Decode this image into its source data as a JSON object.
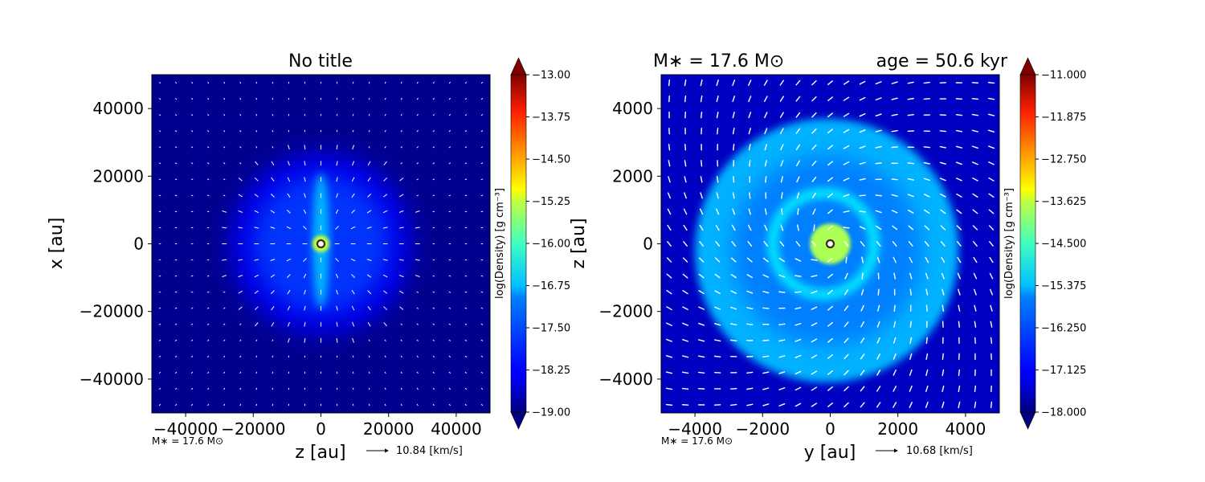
{
  "chart_data": [
    {
      "type": "heatmap",
      "title": "No title",
      "title_right": "",
      "xlabel": "z [au]",
      "ylabel": "x [au]",
      "xlim": [
        -50000,
        50000
      ],
      "ylim": [
        -50000,
        50000
      ],
      "xticks": [
        -40000,
        -20000,
        0,
        20000,
        40000
      ],
      "yticks": [
        -40000,
        -20000,
        0,
        20000,
        40000
      ],
      "xtick_labels": [
        "−40000",
        "−20000",
        "0",
        "20000",
        "40000"
      ],
      "ytick_labels": [
        "−40000",
        "−20000",
        "0",
        "20000",
        "40000"
      ],
      "colorbar": {
        "label": "log(Density) [g cm⁻³]",
        "min": -19.0,
        "max": -13.0,
        "ticks": [
          -13.0,
          -13.75,
          -14.5,
          -15.25,
          -16.0,
          -16.75,
          -17.5,
          -18.25,
          -19.0
        ],
        "tick_labels": [
          "−13.00",
          "−13.75",
          "−14.50",
          "−15.25",
          "−16.00",
          "−16.75",
          "−17.50",
          "−18.25",
          "−19.00"
        ],
        "extend": "both"
      },
      "annotation": "M∗ = 17.6 M⊙",
      "velocity_key": "10.84 [km/s]",
      "sink_position": [
        0,
        0
      ],
      "structures": [
        {
          "kind": "envelope",
          "center": [
            0,
            0
          ],
          "radius": 27000,
          "log_density": -18.3
        },
        {
          "kind": "envelope",
          "center": [
            0,
            0
          ],
          "radius": 20000,
          "log_density": -17.9
        },
        {
          "kind": "filament",
          "center": [
            0,
            1000
          ],
          "width": 5000,
          "height": 40000,
          "log_density": -17.2
        },
        {
          "kind": "core",
          "center": [
            0,
            0
          ],
          "radius": 2500,
          "log_density": -15.6
        }
      ]
    },
    {
      "type": "heatmap",
      "title": "M∗ = 17.6 M⊙",
      "title_right": "age = 50.6 kyr",
      "xlabel": "y [au]",
      "ylabel": "z [au]",
      "xlim": [
        -5000,
        5000
      ],
      "ylim": [
        -5000,
        5000
      ],
      "xticks": [
        -4000,
        -2000,
        0,
        2000,
        4000
      ],
      "yticks": [
        -4000,
        -2000,
        0,
        2000,
        4000
      ],
      "xtick_labels": [
        "−4000",
        "−2000",
        "0",
        "2000",
        "4000"
      ],
      "ytick_labels": [
        "−4000",
        "−2000",
        "0",
        "2000",
        "4000"
      ],
      "colorbar": {
        "label": "log(Density) [g cm⁻³]",
        "min": -18.0,
        "max": -11.0,
        "ticks": [
          -11.0,
          -11.875,
          -12.75,
          -13.625,
          -14.5,
          -15.375,
          -16.25,
          -17.125,
          -18.0
        ],
        "tick_labels": [
          "−11.000",
          "−11.875",
          "−12.750",
          "−13.625",
          "−14.500",
          "−15.375",
          "−16.250",
          "−17.125",
          "−18.000"
        ],
        "extend": "both"
      },
      "annotation": "M∗ = 17.6 M⊙",
      "velocity_key": "10.68 [km/s]",
      "sink_position": [
        0,
        0
      ],
      "structures": [
        {
          "kind": "bubble",
          "center": [
            -100,
            -200
          ],
          "radius": 3900,
          "log_density": -15.9
        },
        {
          "kind": "ring",
          "center": [
            -200,
            0
          ],
          "radius": 1500,
          "log_density": -15.5
        },
        {
          "kind": "core",
          "center": [
            0,
            0
          ],
          "radius": 600,
          "log_density": -14.2
        }
      ]
    }
  ]
}
